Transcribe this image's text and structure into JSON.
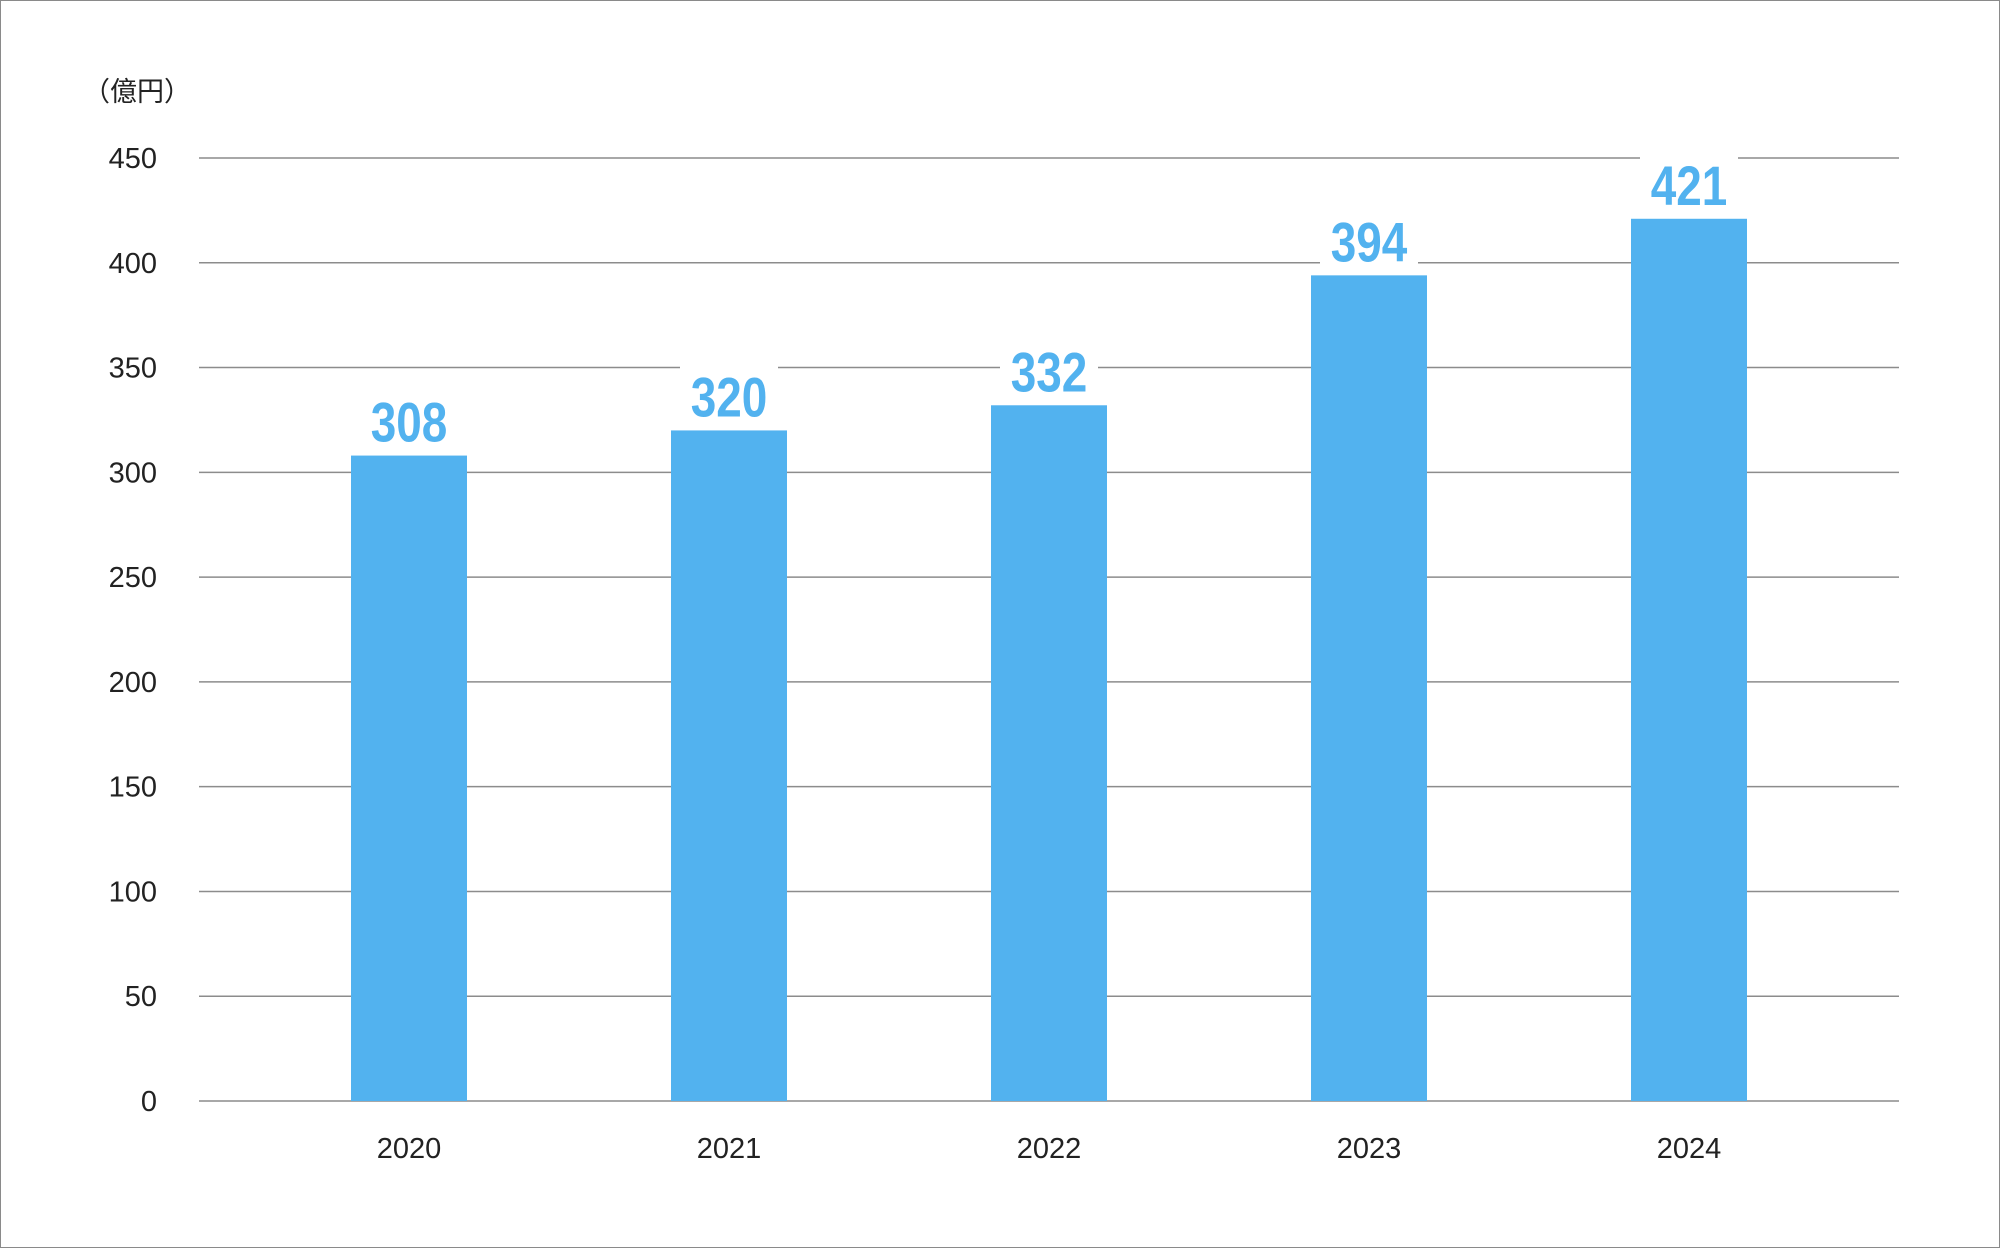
{
  "chart_data": {
    "type": "bar",
    "unit_label": "（億円）",
    "categories": [
      "2020",
      "2021",
      "2022",
      "2023",
      "2024"
    ],
    "values": [
      308,
      320,
      332,
      394,
      421
    ],
    "data_labels": [
      "308",
      "320",
      "332",
      "394",
      "421"
    ],
    "ylim": [
      0,
      450
    ],
    "yticks": [
      0,
      50,
      100,
      150,
      200,
      250,
      300,
      350,
      400,
      450
    ],
    "grid": true,
    "bar_color": "#52b2ef",
    "label_color": "#52b2ef",
    "grid_color": "#8c8c8c",
    "title": "",
    "xlabel": "",
    "ylabel": ""
  }
}
